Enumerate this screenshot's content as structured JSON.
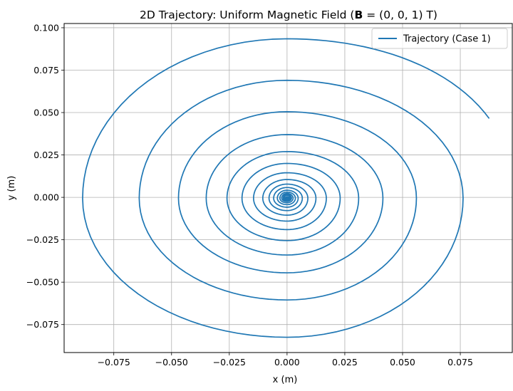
{
  "chart_data": {
    "type": "line",
    "title_prefix": "2D Trajectory: Uniform Magnetic Field (",
    "title_bold": "B",
    "title_suffix": " = (0, 0, 1) T)",
    "xlabel": "x (m)",
    "ylabel": "y (m)",
    "xlim": [
      -0.0965,
      0.0975
    ],
    "ylim": [
      -0.0915,
      0.1025
    ],
    "xticks": [
      -0.075,
      -0.05,
      -0.025,
      0.0,
      0.025,
      0.05,
      0.075
    ],
    "xtick_labels": [
      "−0.075",
      "−0.050",
      "−0.025",
      "0.000",
      "0.025",
      "0.050",
      "0.075"
    ],
    "yticks": [
      -0.075,
      -0.05,
      -0.025,
      0.0,
      0.025,
      0.05,
      0.075,
      0.1
    ],
    "ytick_labels": [
      "−0.075",
      "−0.050",
      "−0.025",
      "0.000",
      "0.025",
      "0.050",
      "0.075",
      "0.100"
    ],
    "grid": true,
    "legend_position": "top-right",
    "series": [
      {
        "name": "Trajectory (Case 1)",
        "color": "#1f77b4",
        "spiral": {
          "center": [
            0.0,
            -0.0005
          ],
          "start_point": [
            0.0875,
            0.0465
          ],
          "extents": [
            {
              "top": 0.0935,
              "left": -0.0885,
              "bottom": -0.0825,
              "right": 0.0762
            },
            {
              "top": 0.069,
              "left": -0.064,
              "bottom": -0.0605,
              "right": 0.056
            },
            {
              "top": 0.0505,
              "left": -0.047,
              "bottom": -0.0445,
              "right": 0.0415
            },
            {
              "top": 0.037,
              "left": -0.035,
              "bottom": -0.034,
              "right": 0.031
            },
            {
              "top": 0.027,
              "left": -0.026,
              "bottom": -0.0255,
              "right": 0.023
            },
            {
              "top": 0.02,
              "left": -0.0195,
              "bottom": -0.019,
              "right": 0.017
            },
            {
              "top": 0.0145,
              "left": -0.0145,
              "bottom": -0.014,
              "right": 0.0125
            },
            {
              "top": 0.0105,
              "left": -0.0105,
              "bottom": -0.0105,
              "right": 0.009
            },
            {
              "top": 0.0078,
              "left": -0.0078,
              "bottom": -0.0078,
              "right": 0.0066
            },
            {
              "top": 0.0058,
              "left": -0.0058,
              "bottom": -0.0058,
              "right": 0.0048
            },
            {
              "top": 0.0042,
              "left": -0.0042,
              "bottom": -0.0043,
              "right": 0.0036
            },
            {
              "top": 0.0031,
              "left": -0.0031,
              "bottom": -0.0032,
              "right": 0.0026
            },
            {
              "top": 0.0023,
              "left": -0.0023,
              "bottom": -0.0024,
              "right": 0.0019
            },
            {
              "top": 0.0017,
              "left": -0.0017,
              "bottom": -0.0018,
              "right": 0.0014
            },
            {
              "top": 0.0012,
              "left": -0.0012,
              "bottom": -0.0013,
              "right": 0.001
            }
          ]
        }
      }
    ]
  }
}
